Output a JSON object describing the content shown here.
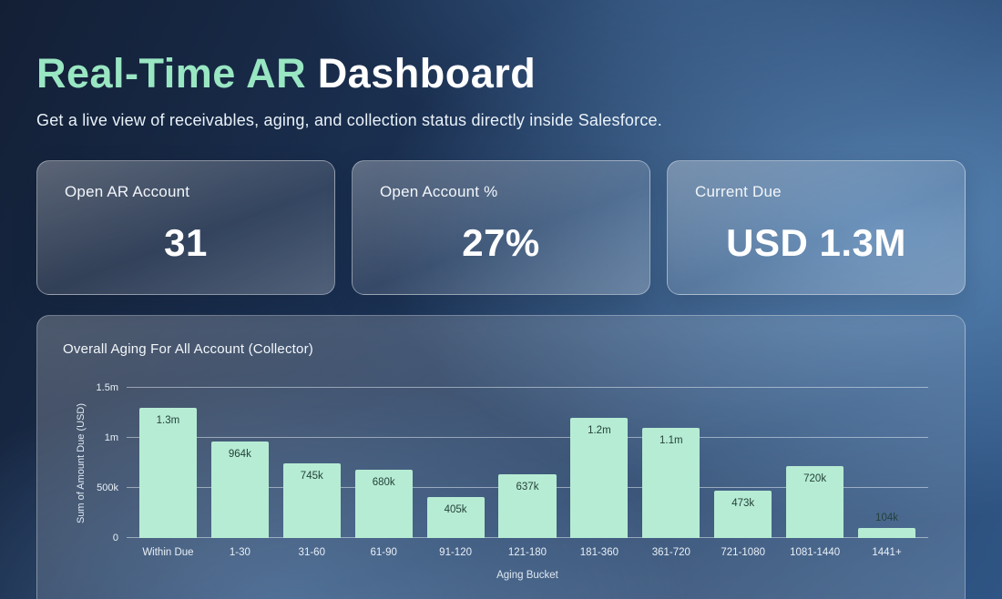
{
  "header": {
    "title_highlight": "Real-Time AR",
    "title_rest": "Dashboard",
    "subtitle": "Get a live view of receivables, aging, and collection status directly inside Salesforce."
  },
  "kpi_cards": [
    {
      "label": "Open AR Account",
      "value": "31"
    },
    {
      "label": "Open Account %",
      "value": "27%"
    },
    {
      "label": "Current Due",
      "value": "USD 1.3M"
    }
  ],
  "chart_data": {
    "type": "bar",
    "title": "Overall Aging For All Account (Collector)",
    "categories": [
      "Within Due",
      "1-30",
      "31-60",
      "61-90",
      "91-120",
      "121-180",
      "181-360",
      "361-720",
      "721-1080",
      "1081-1440",
      "1441+"
    ],
    "values": [
      1300000,
      964000,
      745000,
      680000,
      405000,
      637000,
      1200000,
      1100000,
      473000,
      720000,
      104000
    ],
    "value_labels": [
      "1.3m",
      "964k",
      "745k",
      "680k",
      "405k",
      "637k",
      "1.2m",
      "1.1m",
      "473k",
      "720k",
      "104k"
    ],
    "xlabel": "Aging Bucket",
    "ylabel": "Sum of Amount Due (USD)",
    "ylim": [
      0,
      1500000
    ],
    "yticks": [
      {
        "value": 0,
        "label": "0"
      },
      {
        "value": 500000,
        "label": "500k"
      },
      {
        "value": 1000000,
        "label": "1m"
      },
      {
        "value": 1500000,
        "label": "1.5m"
      }
    ],
    "grid": true,
    "legend": false,
    "bar_color": "#b6ecd4",
    "bar_label_color": "#24423a"
  },
  "colors": {
    "accent_green": "#99e6c3",
    "background_navy": "#1b3153",
    "card_glass": "rgba(255,255,255,0.2)"
  }
}
